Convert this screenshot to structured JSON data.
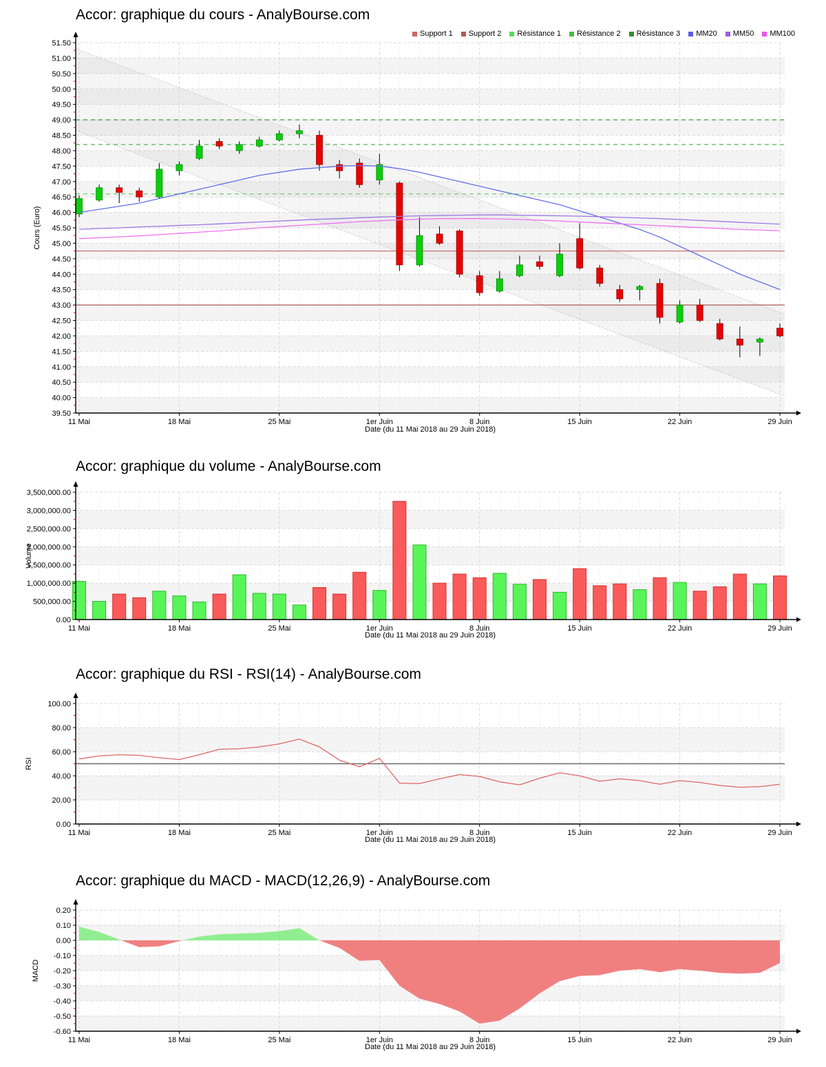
{
  "page": {
    "background": "#ffffff"
  },
  "chart_data": [
    {
      "id": "price",
      "type": "candlestick",
      "title": "Accor: graphique du cours - AnalyBourse.com",
      "ylabel": "Cours (Euro)",
      "xlabel": "Date (du 11 Mai 2018 au 29 Juin 2018)",
      "ylim": [
        39.5,
        51.5
      ],
      "ytick_step": 0.5,
      "ytick_decimals": 2,
      "ytick_thousands": false,
      "x_tick_indices": [
        0,
        5,
        10,
        15,
        20,
        25,
        30,
        35
      ],
      "x_tick_labels": [
        "11 Mai",
        "18 Mai",
        "25 Mai",
        "1er Juin",
        "8 Juin",
        "15 Juin",
        "22 Juin",
        "29 Juin"
      ],
      "legend": [
        {
          "label": "Support 1",
          "color": "#cc6666"
        },
        {
          "label": "Support 2",
          "color": "#b25858"
        },
        {
          "label": "Résistance 1",
          "color": "#55dd55"
        },
        {
          "label": "Résistance 2",
          "color": "#44bb44"
        },
        {
          "label": "Résistance 3",
          "color": "#2f8f2f"
        },
        {
          "label": "MM20",
          "color": "#5c5cee"
        },
        {
          "label": "MM50",
          "color": "#9a5fe0"
        },
        {
          "label": "MM100",
          "color": "#ee55ee"
        }
      ],
      "colors": {
        "up_fill": "#0acf0a",
        "up_border": "#068a06",
        "down_fill": "#e80303",
        "down_border": "#990202",
        "wick": "#000000"
      },
      "candles_ohlc": [
        [
          45.95,
          46.55,
          45.85,
          46.45
        ],
        [
          46.4,
          46.9,
          46.35,
          46.8
        ],
        [
          46.8,
          46.9,
          46.3,
          46.65
        ],
        [
          46.7,
          46.8,
          46.35,
          46.5
        ],
        [
          46.5,
          47.6,
          46.45,
          47.4
        ],
        [
          47.35,
          47.65,
          47.2,
          47.55
        ],
        [
          47.75,
          48.35,
          47.7,
          48.15
        ],
        [
          48.3,
          48.4,
          48.05,
          48.15
        ],
        [
          48.0,
          48.3,
          47.9,
          48.2
        ],
        [
          48.15,
          48.45,
          48.1,
          48.35
        ],
        [
          48.35,
          48.65,
          48.3,
          48.55
        ],
        [
          48.55,
          48.85,
          48.4,
          48.65
        ],
        [
          48.5,
          48.65,
          47.35,
          47.55
        ],
        [
          47.55,
          47.7,
          47.1,
          47.35
        ],
        [
          47.6,
          47.75,
          46.8,
          46.9
        ],
        [
          47.05,
          47.9,
          46.9,
          47.55
        ],
        [
          46.95,
          47.0,
          44.1,
          44.3
        ],
        [
          44.3,
          45.85,
          44.25,
          45.25
        ],
        [
          45.3,
          45.55,
          44.95,
          45.0
        ],
        [
          45.4,
          45.45,
          43.9,
          44.0
        ],
        [
          43.95,
          44.1,
          43.3,
          43.4
        ],
        [
          43.45,
          44.1,
          43.4,
          43.85
        ],
        [
          43.95,
          44.6,
          43.9,
          44.3
        ],
        [
          44.4,
          44.6,
          44.15,
          44.25
        ],
        [
          43.95,
          45.0,
          43.9,
          44.65
        ],
        [
          45.15,
          45.65,
          44.15,
          44.2
        ],
        [
          44.2,
          44.3,
          43.6,
          43.7
        ],
        [
          43.5,
          43.65,
          43.1,
          43.2
        ],
        [
          43.5,
          43.65,
          43.15,
          43.6
        ],
        [
          43.7,
          43.85,
          42.4,
          42.6
        ],
        [
          42.45,
          43.15,
          42.4,
          43.0
        ],
        [
          43.0,
          43.2,
          42.45,
          42.5
        ],
        [
          42.4,
          42.55,
          41.85,
          41.9
        ],
        [
          41.9,
          42.3,
          41.3,
          41.7
        ],
        [
          41.8,
          41.95,
          41.35,
          41.9
        ],
        [
          42.25,
          42.4,
          41.95,
          42.0
        ]
      ],
      "moving_averages": [
        {
          "name": "MM20",
          "color": "#6370e6",
          "values": [
            46.0,
            46.1,
            46.2,
            46.3,
            46.45,
            46.6,
            46.75,
            46.9,
            47.05,
            47.2,
            47.3,
            47.4,
            47.45,
            47.5,
            47.52,
            47.5,
            47.42,
            47.3,
            47.15,
            47.0,
            46.85,
            46.7,
            46.55,
            46.4,
            46.25,
            46.05,
            45.85,
            45.65,
            45.45,
            45.2,
            44.9,
            44.6,
            44.3,
            44.0,
            43.75,
            43.5
          ]
        },
        {
          "name": "MM50",
          "color": "#9b76e8",
          "values": [
            45.45,
            45.48,
            45.5,
            45.53,
            45.55,
            45.58,
            45.6,
            45.63,
            45.66,
            45.69,
            45.72,
            45.75,
            45.78,
            45.8,
            45.83,
            45.85,
            45.87,
            45.89,
            45.9,
            45.91,
            45.92,
            45.92,
            45.91,
            45.9,
            45.89,
            45.88,
            45.86,
            45.84,
            45.82,
            45.8,
            45.77,
            45.74,
            45.71,
            45.68,
            45.65,
            45.62
          ]
        },
        {
          "name": "MM100",
          "color": "#f06ff0",
          "values": [
            45.15,
            45.18,
            45.21,
            45.24,
            45.28,
            45.32,
            45.36,
            45.4,
            45.45,
            45.5,
            45.54,
            45.58,
            45.62,
            45.66,
            45.7,
            45.73,
            45.76,
            45.78,
            45.8,
            45.8,
            45.8,
            45.79,
            45.77,
            45.75,
            45.72,
            45.69,
            45.66,
            45.63,
            45.6,
            45.57,
            45.54,
            45.51,
            45.48,
            45.45,
            45.43,
            45.41
          ]
        }
      ],
      "horizontal_lines": [
        {
          "name": "Support 1",
          "value": 44.75,
          "color": "#cc7272",
          "style": "solid"
        },
        {
          "name": "Support 2",
          "value": 43.0,
          "color": "#a04848",
          "style": "solid"
        },
        {
          "name": "Résistance 1",
          "value": 46.6,
          "color": "#5ecc5e",
          "style": "dashed"
        },
        {
          "name": "Résistance 2",
          "value": 48.2,
          "color": "#3fae3f",
          "style": "dashed"
        },
        {
          "name": "Résistance 3",
          "value": 49.0,
          "color": "#2f8f2f",
          "style": "dashed"
        }
      ],
      "channel": {
        "top_start": 51.3,
        "top_end": 42.7,
        "bottom_start": 48.65,
        "bottom_end": 40.05,
        "line_color": "#bdbdbd",
        "fill": "rgba(170,170,170,0.12)"
      }
    },
    {
      "id": "volume",
      "type": "bar",
      "title": "Accor: graphique du volume - AnalyBourse.com",
      "ylabel": "Volume",
      "xlabel": "Date (du 11 Mai 2018 au 29 Juin 2018)",
      "ylim": [
        0,
        3500000
      ],
      "ytick_step": 500000,
      "ytick_decimals": 2,
      "ytick_thousands": true,
      "x_tick_indices": [
        0,
        5,
        10,
        15,
        20,
        25,
        30,
        35
      ],
      "x_tick_labels": [
        "11 Mai",
        "18 Mai",
        "25 Mai",
        "1er Juin",
        "8 Juin",
        "15 Juin",
        "22 Juin",
        "29 Juin"
      ],
      "colors": {
        "up_fill": "#58f558",
        "up_border": "#2db82d",
        "down_fill": "#fa5a5a",
        "down_border": "#d83030"
      },
      "values": [
        1050000,
        500000,
        700000,
        600000,
        780000,
        650000,
        480000,
        700000,
        1230000,
        720000,
        700000,
        400000,
        880000,
        700000,
        1300000,
        800000,
        3250000,
        2050000,
        1000000,
        1250000,
        1150000,
        1270000,
        970000,
        1100000,
        750000,
        1400000,
        930000,
        980000,
        820000,
        1150000,
        1020000,
        780000,
        900000,
        1250000,
        980000,
        1200000
      ],
      "directions": [
        "up",
        "up",
        "down",
        "down",
        "up",
        "up",
        "up",
        "down",
        "up",
        "up",
        "up",
        "up",
        "down",
        "down",
        "down",
        "up",
        "down",
        "up",
        "down",
        "down",
        "down",
        "up",
        "up",
        "down",
        "up",
        "down",
        "down",
        "down",
        "up",
        "down",
        "up",
        "down",
        "down",
        "down",
        "up",
        "down"
      ]
    },
    {
      "id": "rsi",
      "type": "line",
      "title": "Accor: graphique du RSI - RSI(14) - AnalyBourse.com",
      "ylabel": "RSI",
      "xlabel": "Date (du 11 Mai 2018 au 29 Juin 2018)",
      "ylim": [
        0,
        100
      ],
      "ytick_step": 20,
      "ytick_decimals": 2,
      "ytick_thousands": false,
      "x_tick_indices": [
        0,
        5,
        10,
        15,
        20,
        25,
        30,
        35
      ],
      "x_tick_labels": [
        "11 Mai",
        "18 Mai",
        "25 Mai",
        "1er Juin",
        "8 Juin",
        "15 Juin",
        "22 Juin",
        "29 Juin"
      ],
      "line_color": "#dd6666",
      "center_line": {
        "value": 50,
        "color": "#555555"
      },
      "values": [
        54,
        56.5,
        57.5,
        57,
        55,
        53.5,
        57.5,
        62,
        62.5,
        64,
        66.5,
        70.5,
        64,
        53,
        47.5,
        54.5,
        34,
        33.5,
        37.5,
        41,
        39.5,
        35,
        32.5,
        38,
        42.5,
        40,
        35.5,
        37.5,
        36,
        33,
        36,
        34.5,
        32,
        30.5,
        31,
        33
      ]
    },
    {
      "id": "macd",
      "type": "area",
      "title": "Accor: graphique du MACD - MACD(12,26,9) - AnalyBourse.com",
      "ylabel": "MACD",
      "xlabel": "Date (du 11 Mai 2018 au 29 Juin 2018)",
      "ylim": [
        -0.6,
        0.2
      ],
      "ytick_step": 0.1,
      "ytick_decimals": 2,
      "ytick_thousands": false,
      "x_tick_indices": [
        0,
        5,
        10,
        15,
        20,
        25,
        30,
        35
      ],
      "x_tick_labels": [
        "11 Mai",
        "18 Mai",
        "25 Mai",
        "1er Juin",
        "8 Juin",
        "15 Juin",
        "22 Juin",
        "29 Juin"
      ],
      "positive_color": "#90ee90",
      "negative_color": "#f08080",
      "values": [
        0.09,
        0.055,
        0.005,
        -0.045,
        -0.04,
        -0.005,
        0.025,
        0.04,
        0.045,
        0.05,
        0.06,
        0.08,
        0.0,
        -0.05,
        -0.135,
        -0.13,
        -0.3,
        -0.385,
        -0.42,
        -0.47,
        -0.55,
        -0.53,
        -0.45,
        -0.35,
        -0.27,
        -0.235,
        -0.23,
        -0.2,
        -0.19,
        -0.21,
        -0.19,
        -0.2,
        -0.215,
        -0.22,
        -0.215,
        -0.15
      ]
    }
  ]
}
